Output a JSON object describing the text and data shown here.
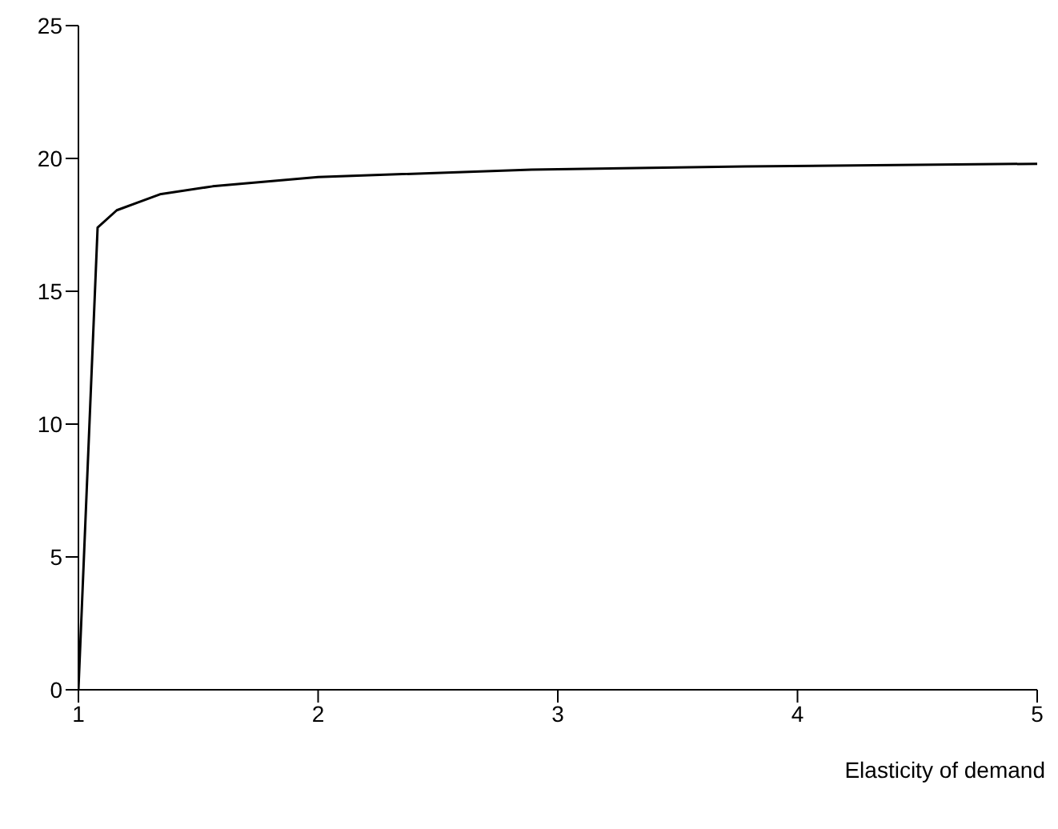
{
  "chart_data": {
    "type": "line",
    "xlabel": "Elasticity of demand",
    "xlim": [
      1,
      5
    ],
    "xticks": [
      1,
      2,
      3,
      4,
      5
    ],
    "ylim": [
      0,
      25
    ],
    "yticks": [
      0,
      5,
      10,
      15,
      20,
      25
    ],
    "grid": false,
    "legend": false,
    "marker": "none",
    "line_style": "solid",
    "series": [
      {
        "color": "#000000",
        "x": [
          1,
          1.08,
          1.16,
          1.34,
          1.56,
          2,
          2.89,
          3.78,
          5
        ],
        "values": [
          0,
          17.4,
          18.05,
          18.65,
          18.95,
          19.3,
          19.58,
          19.7,
          19.8
        ]
      }
    ]
  }
}
